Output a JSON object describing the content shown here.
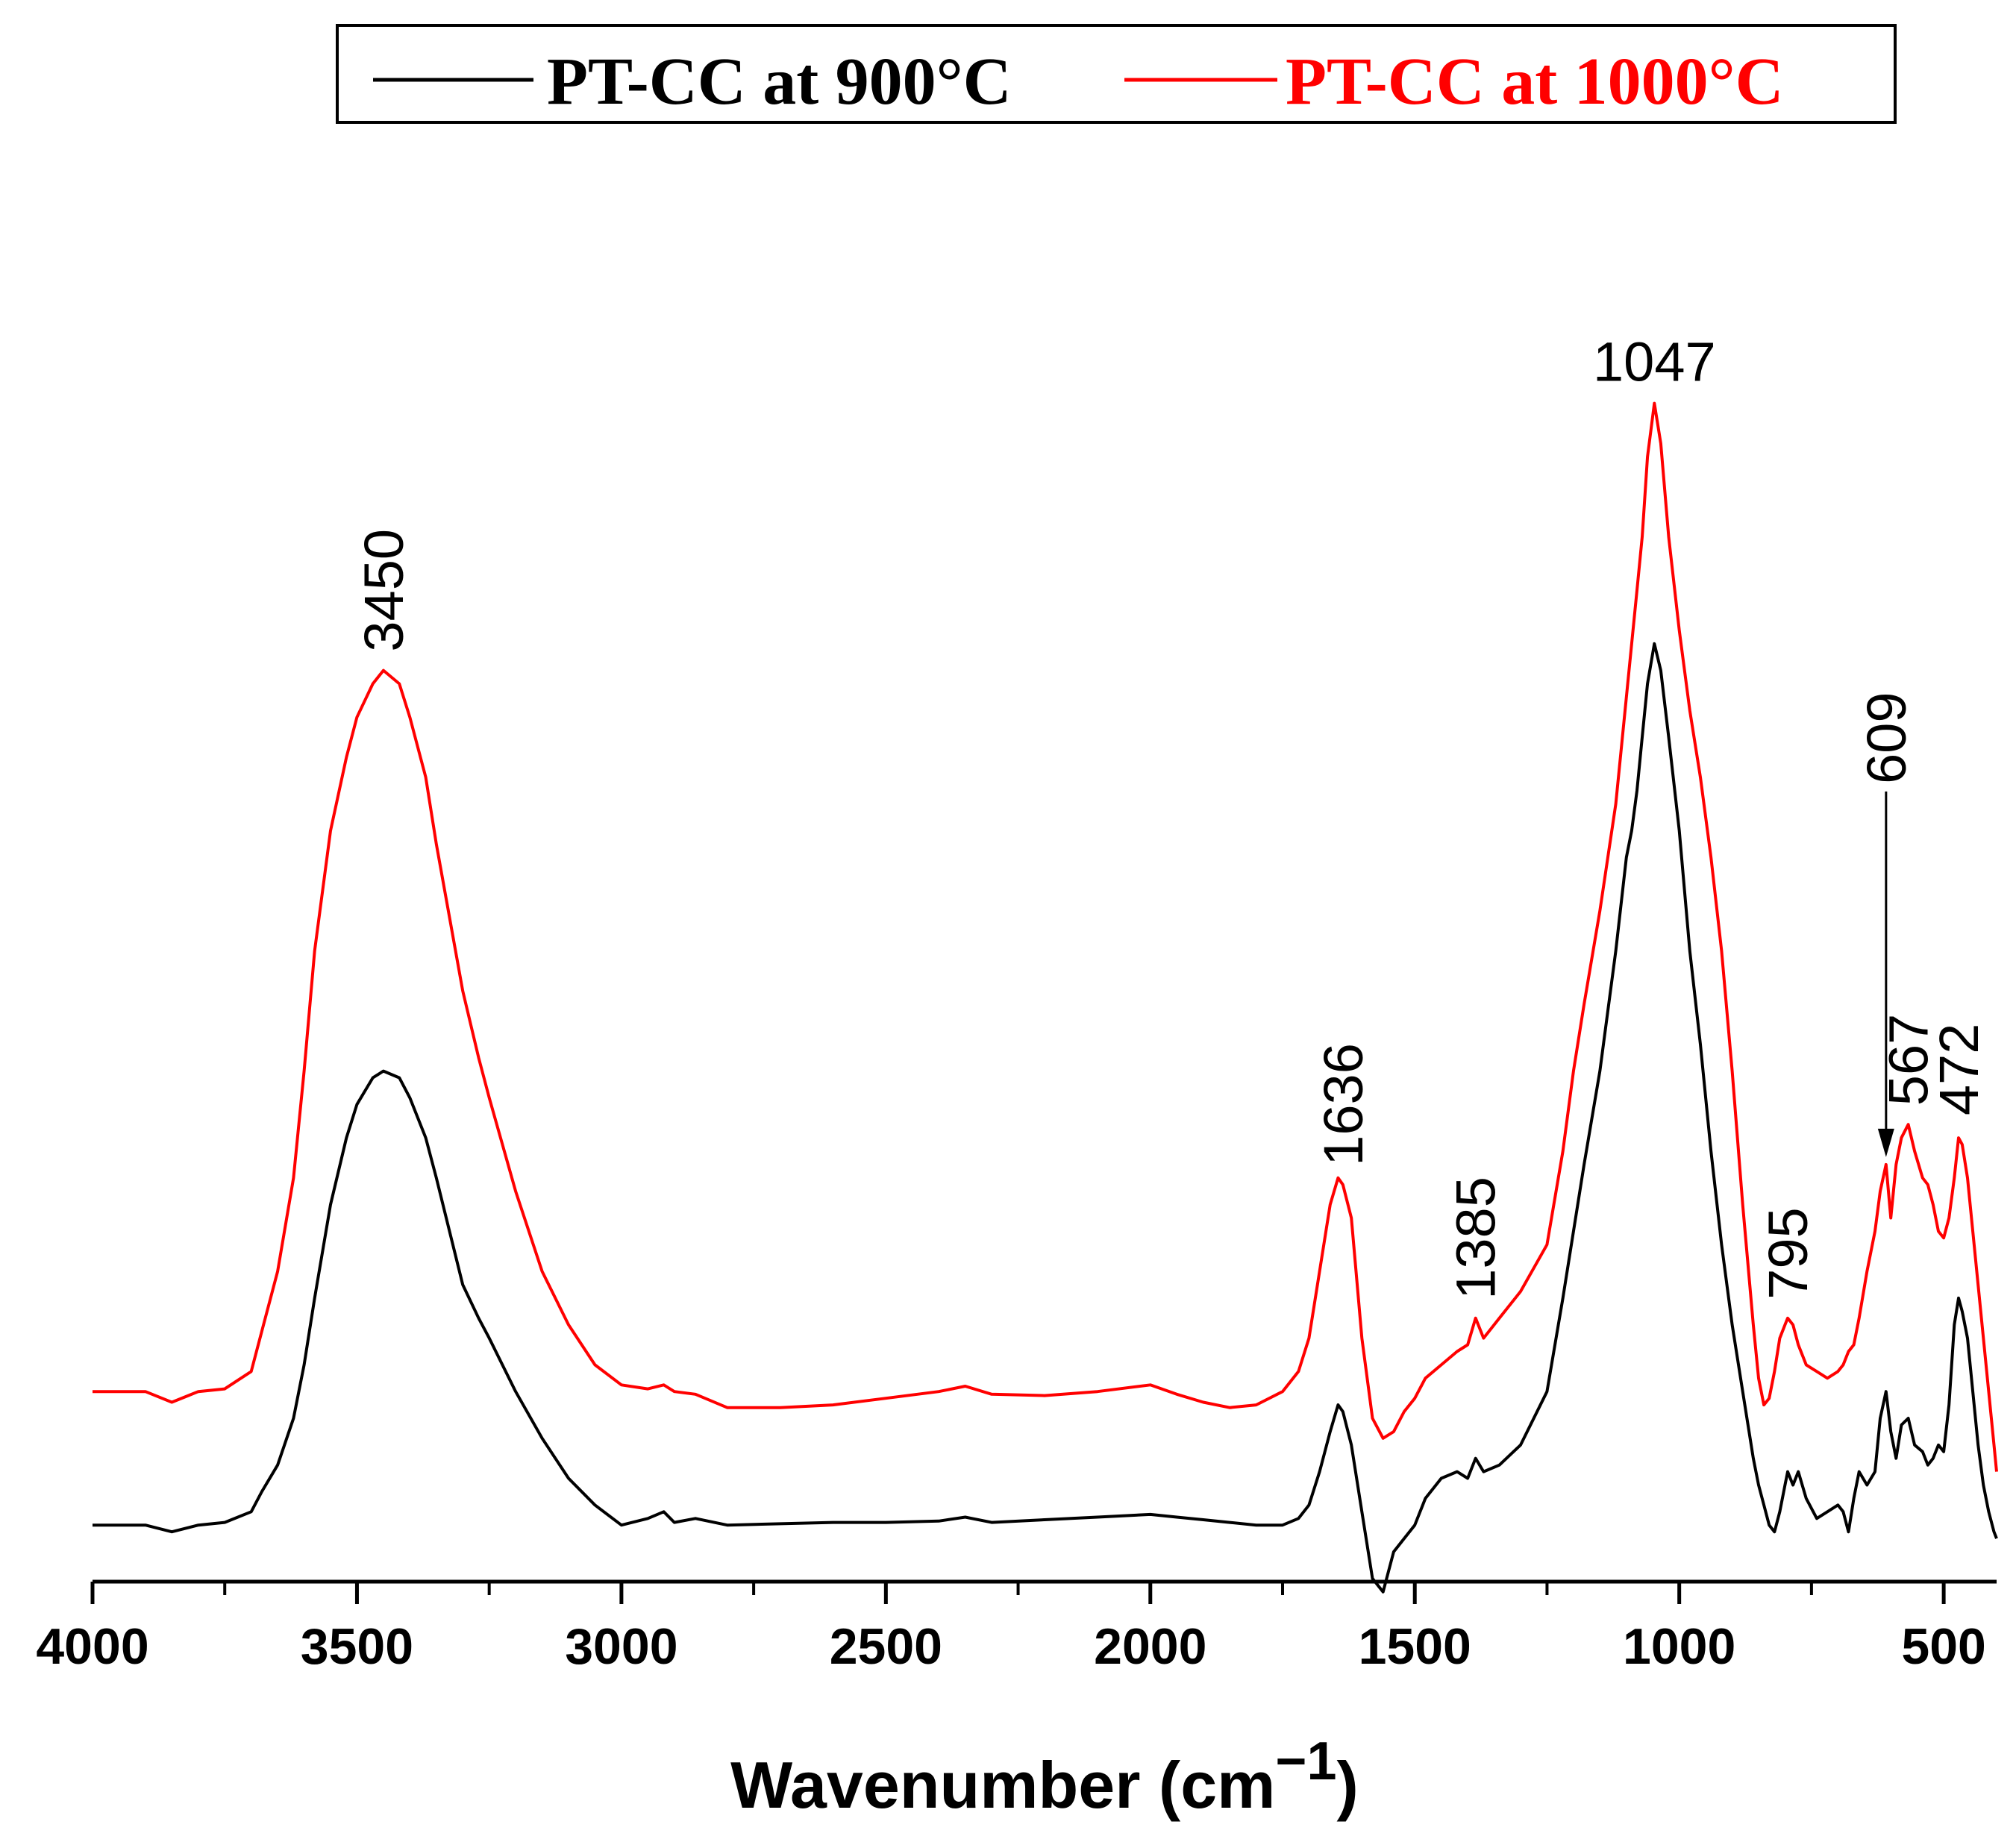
{
  "chart_data": {
    "type": "line",
    "title": "",
    "xlabel": "Wavenumber (cm",
    "xlabel_superscript": "−1",
    "xlabel_suffix": ")",
    "ylabel": "",
    "xlim": [
      4000,
      400
    ],
    "x_reversed": true,
    "ylim": [
      0,
      1
    ],
    "y_ticks_visible": false,
    "x_ticks": [
      4000,
      3500,
      3000,
      2500,
      2000,
      1500,
      1000,
      500
    ],
    "x_tick_labels": [
      "4000",
      "3500",
      "3000",
      "2500",
      "2000",
      "1500",
      "1000",
      "500"
    ],
    "legend": {
      "placement": "top",
      "entries": [
        "PT-CC at 900°C",
        "PT-CC at 1000°C"
      ]
    },
    "series": [
      {
        "name": "PT-CC at 900°C",
        "color": "#000000",
        "x": [
          4000,
          3900,
          3850,
          3800,
          3750,
          3700,
          3680,
          3650,
          3620,
          3600,
          3580,
          3550,
          3520,
          3500,
          3470,
          3450,
          3420,
          3400,
          3370,
          3350,
          3300,
          3270,
          3250,
          3200,
          3150,
          3100,
          3050,
          3000,
          2950,
          2920,
          2900,
          2860,
          2800,
          2700,
          2600,
          2500,
          2400,
          2350,
          2300,
          2200,
          2100,
          2000,
          1950,
          1900,
          1850,
          1800,
          1750,
          1720,
          1700,
          1680,
          1660,
          1645,
          1636,
          1620,
          1600,
          1580,
          1560,
          1540,
          1520,
          1500,
          1480,
          1450,
          1420,
          1400,
          1385,
          1370,
          1340,
          1300,
          1250,
          1220,
          1200,
          1180,
          1150,
          1120,
          1100,
          1090,
          1080,
          1070,
          1060,
          1047,
          1035,
          1020,
          1000,
          980,
          960,
          940,
          920,
          900,
          880,
          860,
          850,
          840,
          830,
          820,
          810,
          800,
          795,
          785,
          775,
          760,
          740,
          720,
          700,
          690,
          680,
          670,
          660,
          645,
          630,
          620,
          609,
          600,
          590,
          580,
          567,
          555,
          540,
          530,
          520,
          510,
          500,
          490,
          480,
          472,
          465,
          455,
          445,
          435,
          425,
          415,
          405,
          400
        ],
        "y": [
          0.02,
          0.02,
          0.015,
          0.02,
          0.022,
          0.03,
          0.045,
          0.065,
          0.1,
          0.14,
          0.19,
          0.26,
          0.31,
          0.335,
          0.355,
          0.36,
          0.355,
          0.34,
          0.31,
          0.28,
          0.2,
          0.175,
          0.16,
          0.12,
          0.085,
          0.055,
          0.035,
          0.02,
          0.025,
          0.03,
          0.022,
          0.025,
          0.02,
          0.021,
          0.022,
          0.022,
          0.023,
          0.026,
          0.022,
          0.024,
          0.026,
          0.028,
          0.026,
          0.024,
          0.022,
          0.02,
          0.02,
          0.025,
          0.035,
          0.06,
          0.09,
          0.11,
          0.105,
          0.08,
          0.03,
          -0.02,
          -0.03,
          0.0,
          0.01,
          0.02,
          0.04,
          0.055,
          0.06,
          0.055,
          0.07,
          0.06,
          0.065,
          0.08,
          0.12,
          0.19,
          0.24,
          0.29,
          0.36,
          0.45,
          0.52,
          0.54,
          0.57,
          0.61,
          0.65,
          0.68,
          0.66,
          0.61,
          0.54,
          0.45,
          0.38,
          0.3,
          0.23,
          0.17,
          0.12,
          0.07,
          0.05,
          0.035,
          0.02,
          0.015,
          0.03,
          0.05,
          0.06,
          0.05,
          0.06,
          0.04,
          0.025,
          0.03,
          0.035,
          0.03,
          0.015,
          0.04,
          0.06,
          0.05,
          0.06,
          0.1,
          0.12,
          0.09,
          0.07,
          0.095,
          0.1,
          0.08,
          0.075,
          0.065,
          0.07,
          0.08,
          0.075,
          0.11,
          0.17,
          0.19,
          0.18,
          0.16,
          0.12,
          0.08,
          0.05,
          0.03,
          0.015,
          0.01
        ]
      },
      {
        "name": "PT-CC at 1000°C",
        "color": "#ff0000",
        "x": [
          4000,
          3900,
          3850,
          3800,
          3750,
          3700,
          3680,
          3650,
          3620,
          3600,
          3580,
          3550,
          3520,
          3500,
          3470,
          3450,
          3420,
          3400,
          3370,
          3350,
          3300,
          3270,
          3250,
          3200,
          3150,
          3100,
          3050,
          3000,
          2950,
          2920,
          2900,
          2860,
          2800,
          2700,
          2600,
          2500,
          2400,
          2350,
          2300,
          2200,
          2100,
          2000,
          1950,
          1900,
          1850,
          1800,
          1750,
          1720,
          1700,
          1680,
          1660,
          1645,
          1636,
          1620,
          1600,
          1580,
          1560,
          1540,
          1520,
          1500,
          1480,
          1450,
          1420,
          1400,
          1385,
          1370,
          1340,
          1300,
          1250,
          1220,
          1200,
          1180,
          1150,
          1120,
          1100,
          1090,
          1080,
          1070,
          1060,
          1047,
          1035,
          1020,
          1000,
          980,
          960,
          940,
          920,
          900,
          880,
          860,
          850,
          840,
          830,
          820,
          810,
          800,
          795,
          785,
          775,
          760,
          740,
          720,
          700,
          690,
          680,
          670,
          660,
          645,
          630,
          620,
          609,
          600,
          590,
          580,
          567,
          555,
          540,
          530,
          520,
          510,
          500,
          490,
          480,
          472,
          465,
          455,
          445,
          435,
          425,
          415,
          405,
          400
        ],
        "y": [
          0.12,
          0.12,
          0.112,
          0.12,
          0.122,
          0.135,
          0.165,
          0.21,
          0.28,
          0.36,
          0.45,
          0.54,
          0.595,
          0.625,
          0.65,
          0.66,
          0.65,
          0.625,
          0.58,
          0.53,
          0.42,
          0.37,
          0.34,
          0.27,
          0.21,
          0.17,
          0.14,
          0.125,
          0.122,
          0.125,
          0.12,
          0.118,
          0.108,
          0.108,
          0.11,
          0.115,
          0.12,
          0.124,
          0.118,
          0.117,
          0.12,
          0.125,
          0.118,
          0.112,
          0.108,
          0.11,
          0.12,
          0.135,
          0.16,
          0.21,
          0.26,
          0.28,
          0.275,
          0.25,
          0.16,
          0.1,
          0.085,
          0.09,
          0.105,
          0.115,
          0.13,
          0.14,
          0.15,
          0.155,
          0.175,
          0.16,
          0.175,
          0.195,
          0.23,
          0.3,
          0.36,
          0.41,
          0.48,
          0.56,
          0.64,
          0.68,
          0.72,
          0.76,
          0.82,
          0.86,
          0.83,
          0.76,
          0.69,
          0.63,
          0.58,
          0.52,
          0.45,
          0.36,
          0.26,
          0.17,
          0.13,
          0.11,
          0.115,
          0.135,
          0.16,
          0.17,
          0.175,
          0.17,
          0.155,
          0.14,
          0.135,
          0.13,
          0.135,
          0.14,
          0.15,
          0.155,
          0.175,
          0.21,
          0.24,
          0.27,
          0.29,
          0.25,
          0.29,
          0.31,
          0.32,
          0.3,
          0.28,
          0.275,
          0.26,
          0.24,
          0.235,
          0.25,
          0.28,
          0.31,
          0.305,
          0.28,
          0.24,
          0.2,
          0.16,
          0.12,
          0.08,
          0.06
        ]
      }
    ],
    "annotations": [
      {
        "text": "3450",
        "x": 3450,
        "series": "PT-CC at 1000°C"
      },
      {
        "text": "1636",
        "x": 1636,
        "series": "PT-CC at 1000°C"
      },
      {
        "text": "1385",
        "x": 1385,
        "series": "PT-CC at 1000°C"
      },
      {
        "text": "1047",
        "x": 1047,
        "series": "PT-CC at 1000°C"
      },
      {
        "text": "795",
        "x": 795,
        "series": "PT-CC at 1000°C"
      },
      {
        "text": "609",
        "x": 609,
        "series": "PT-CC at 1000°C",
        "arrow": true
      },
      {
        "text": "567",
        "x": 567,
        "series": "PT-CC at 1000°C"
      },
      {
        "text": "472",
        "x": 472,
        "series": "PT-CC at 1000°C"
      }
    ]
  }
}
